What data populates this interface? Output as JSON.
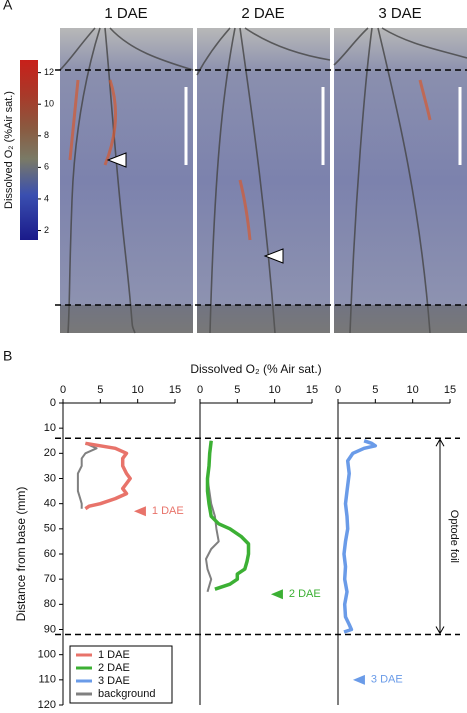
{
  "panel_labels": {
    "a": "A",
    "b": "B"
  },
  "images": {
    "titles": [
      "1 DAE",
      "2 DAE",
      "3 DAE"
    ],
    "colorbar": {
      "label": "Dissolved O₂ (%Air sat.)",
      "lim": [
        1.4,
        12.8
      ],
      "ticks": [
        2,
        4,
        6,
        8,
        10,
        12
      ]
    }
  },
  "chart_data": [
    {
      "type": "line",
      "xlabel": "Dissolved O₂ (% Air sat.)",
      "ylabel": "Distance from base (mm)",
      "xlim": [
        0,
        15
      ],
      "xticks": [
        0,
        5,
        10,
        15
      ],
      "ylim": [
        0,
        120
      ],
      "yticks": [
        0,
        10,
        20,
        30,
        40,
        50,
        60,
        70,
        80,
        90,
        100,
        110,
        120
      ],
      "reference_lines": [
        14,
        92
      ],
      "legend": [
        {
          "name": "1 DAE",
          "color": "#e8736a"
        },
        {
          "name": "2 DAE",
          "color": "#3cb034"
        },
        {
          "name": "3 DAE",
          "color": "#6a9be8"
        },
        {
          "name": "background",
          "color": "#808080"
        }
      ],
      "series": [
        {
          "name": "background",
          "color": "#808080",
          "depth": [
            16,
            18,
            20,
            22,
            25,
            28,
            32,
            35,
            38,
            40,
            42
          ],
          "values": [
            3,
            4.5,
            3,
            2.5,
            2.5,
            2,
            2,
            2,
            2.3,
            2.5,
            2.5
          ]
        },
        {
          "name": "1 DAE",
          "color": "#e8736a",
          "depth": [
            16,
            17,
            18,
            20,
            22,
            25,
            28,
            30,
            32,
            34,
            36,
            38,
            40,
            41,
            42
          ],
          "values": [
            3,
            5,
            7,
            8.5,
            8,
            8,
            8.5,
            9,
            8.5,
            8,
            8.5,
            7,
            5,
            3.5,
            3
          ]
        }
      ],
      "annotations": [
        {
          "text": "1 DAE",
          "x": 9.5,
          "y": 43,
          "color": "#e8736a"
        }
      ]
    },
    {
      "type": "line",
      "xlim": [
        0,
        15
      ],
      "xticks": [
        0,
        5,
        10,
        15
      ],
      "ylim": [
        0,
        120
      ],
      "series": [
        {
          "name": "background",
          "color": "#808080",
          "depth": [
            15,
            20,
            30,
            40,
            45,
            50,
            55,
            58,
            62,
            66,
            70,
            73,
            75
          ],
          "values": [
            1.5,
            1.3,
            1,
            1.5,
            2,
            2.2,
            2.5,
            1.5,
            0.8,
            1,
            1.5,
            1.2,
            1
          ]
        },
        {
          "name": "2 DAE",
          "color": "#3cb034",
          "depth": [
            15,
            20,
            25,
            30,
            35,
            40,
            45,
            48,
            50,
            53,
            56,
            60,
            63,
            66,
            68,
            70,
            72,
            73,
            74
          ],
          "values": [
            1.5,
            1.3,
            1.2,
            1,
            1,
            1.2,
            1.5,
            2.5,
            4,
            5.5,
            6.5,
            6.5,
            6.3,
            6,
            5,
            5,
            4,
            3,
            2
          ]
        }
      ],
      "annotations": [
        {
          "text": "2 DAE",
          "x": 9.5,
          "y": 76,
          "color": "#3cb034"
        }
      ]
    },
    {
      "type": "line",
      "xlim": [
        0,
        15
      ],
      "xticks": [
        0,
        5,
        10,
        15
      ],
      "ylim": [
        0,
        120
      ],
      "series": [
        {
          "name": "3 DAE",
          "color": "#6a9be8",
          "depth": [
            15,
            16,
            17,
            18,
            20,
            23,
            28,
            35,
            40,
            45,
            50,
            55,
            60,
            65,
            70,
            75,
            80,
            85,
            88,
            90,
            91
          ],
          "values": [
            3.5,
            4.5,
            5,
            3.5,
            2,
            1.3,
            1.5,
            1.2,
            1,
            1.2,
            1.3,
            1,
            0.8,
            1,
            0.9,
            1.2,
            0.9,
            1,
            1.5,
            1.8,
            0.8
          ]
        }
      ],
      "annotations": [
        {
          "text": "3 DAE",
          "x": 2,
          "y": 110,
          "color": "#6a9be8"
        },
        {
          "text": "Optode foil",
          "span": [
            14,
            92
          ]
        }
      ]
    }
  ]
}
